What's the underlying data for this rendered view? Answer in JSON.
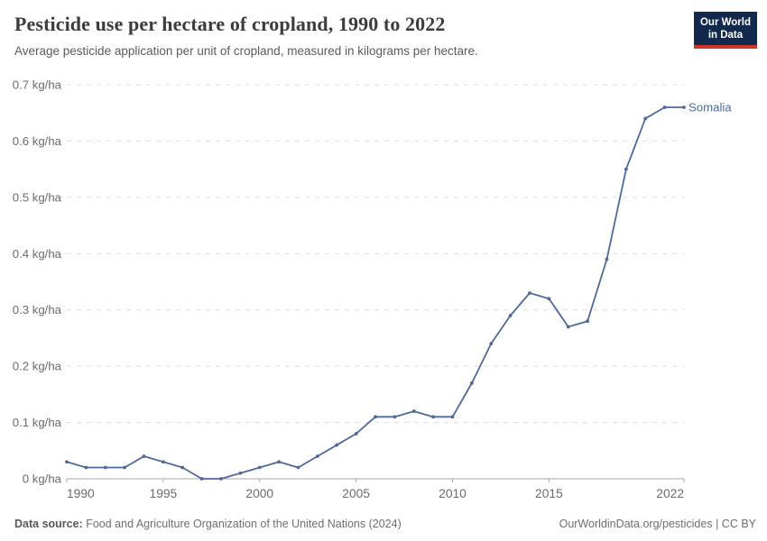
{
  "header": {
    "title": "Pesticide use per hectare of cropland, 1990 to 2022",
    "subtitle": "Average pesticide application per unit of cropland, measured in kilograms per hectare.",
    "logo_line1": "Our World",
    "logo_line2": "in Data"
  },
  "colors": {
    "line": "#4C6A9C",
    "entity_label": "#4C6A9C",
    "grid": "#DEDEDE",
    "axis": "#A5A5A5",
    "tick_text": "#6B6B6B",
    "logo_bg": "#12294D",
    "logo_red": "#CF3529"
  },
  "chart_data": {
    "type": "line",
    "title": "Pesticide use per hectare of cropland, 1990 to 2022",
    "xlabel": "",
    "ylabel": "kg/ha",
    "xlim": [
      1990,
      2022
    ],
    "ylim": [
      0,
      0.7
    ],
    "grid": "horizontal-dashed",
    "legend": "end-of-line-label",
    "x": [
      1990,
      1991,
      1992,
      1993,
      1994,
      1995,
      1996,
      1997,
      1998,
      1999,
      2000,
      2001,
      2002,
      2003,
      2004,
      2005,
      2006,
      2007,
      2008,
      2009,
      2010,
      2011,
      2012,
      2013,
      2014,
      2015,
      2016,
      2017,
      2018,
      2019,
      2020,
      2021,
      2022
    ],
    "series": [
      {
        "name": "Somalia",
        "values": [
          0.03,
          0.02,
          0.02,
          0.02,
          0.04,
          0.03,
          0.02,
          0.0,
          0.0,
          0.01,
          0.02,
          0.03,
          0.02,
          0.04,
          0.06,
          0.08,
          0.11,
          0.11,
          0.12,
          0.11,
          0.11,
          0.17,
          0.24,
          0.29,
          0.33,
          0.32,
          0.27,
          0.28,
          0.39,
          0.55,
          0.64,
          0.66,
          0.66
        ]
      }
    ],
    "yticks": {
      "values": [
        0,
        0.1,
        0.2,
        0.3,
        0.4,
        0.5,
        0.6,
        0.7
      ],
      "labels": [
        "0 kg/ha",
        "0.1 kg/ha",
        "0.2 kg/ha",
        "0.3 kg/ha",
        "0.4 kg/ha",
        "0.5 kg/ha",
        "0.6 kg/ha",
        "0.7 kg/ha"
      ]
    },
    "xticks": {
      "values": [
        1990,
        1995,
        2000,
        2005,
        2010,
        2015,
        2022
      ],
      "labels": [
        "1990",
        "1995",
        "2000",
        "2005",
        "2010",
        "2015",
        "2022"
      ]
    }
  },
  "footer": {
    "datasource_label": "Data source:",
    "datasource_text": "Food and Agriculture Organization of the United Nations (2024)",
    "url_label": "OurWorldinData.org/pesticides",
    "separator": "|",
    "license_label": "CC BY"
  }
}
